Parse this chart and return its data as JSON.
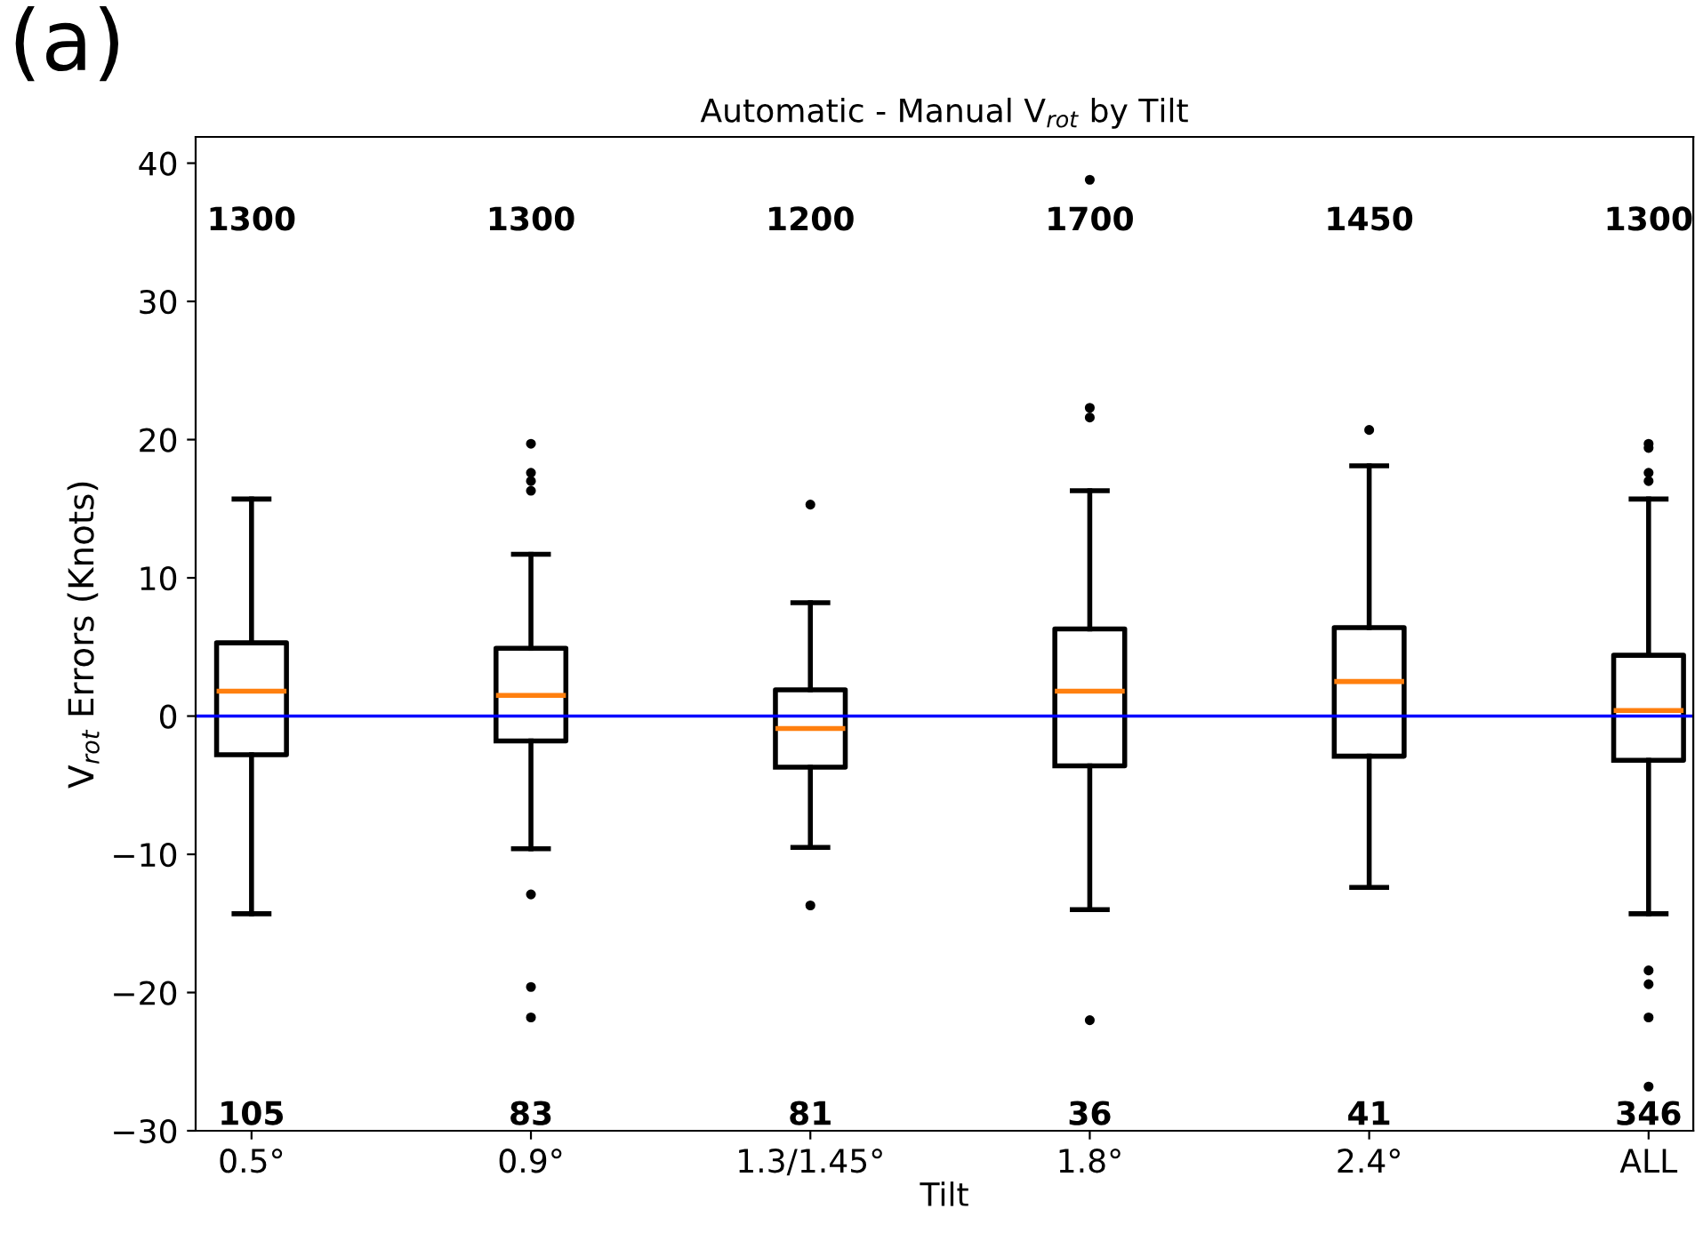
{
  "chart_data": {
    "type": "box",
    "title": "Automatic - Manual V$_{rot}$ by Tilt",
    "xlabel": "Tilt",
    "ylabel": "V$_{rot}$ Errors (Knots)",
    "categories": [
      "0.5°",
      "0.9°",
      "1.3/1.45°",
      "1.8°",
      "2.4°",
      "ALL"
    ],
    "boxes": [
      {
        "low": -14.3,
        "q1": -2.8,
        "median": 1.8,
        "q3": 5.3,
        "high": 15.7
      },
      {
        "low": -9.6,
        "q1": -1.8,
        "median": 1.5,
        "q3": 4.9,
        "high": 11.7,
        "outliers": [
          19.7,
          17.6,
          17.0,
          16.3,
          -12.9,
          -19.6,
          -21.8
        ]
      },
      {
        "low": -9.5,
        "q1": -3.7,
        "median": -0.9,
        "q3": 1.9,
        "high": 8.2,
        "outliers": [
          15.3,
          -13.7
        ]
      },
      {
        "low": -14.0,
        "q1": -3.6,
        "median": 1.8,
        "q3": 6.3,
        "high": 16.3,
        "outliers": [
          38.8,
          22.3,
          21.6,
          -22.0
        ]
      },
      {
        "low": -12.4,
        "q1": -2.9,
        "median": 2.5,
        "q3": 6.4,
        "high": 18.1,
        "outliers": [
          20.7
        ]
      },
      {
        "low": -14.3,
        "q1": -3.2,
        "median": 0.4,
        "q3": 4.4,
        "high": 15.7,
        "outliers": [
          19.7,
          19.4,
          17.6,
          17.0,
          -18.4,
          -19.4,
          -21.8,
          -26.8
        ]
      }
    ],
    "ylim": [
      -30,
      41.9
    ],
    "yticks": [
      {
        "value": -30,
        "label": "−30"
      },
      {
        "value": -20,
        "label": "−20"
      },
      {
        "value": -10,
        "label": "−10"
      },
      0,
      10,
      20,
      30,
      40
    ],
    "ref_lines": [
      {
        "axis": "y",
        "value": 0,
        "color": "#0000ff"
      }
    ],
    "grid": false,
    "annotations": [
      "(a)",
      "1300",
      "1300",
      "1200",
      "1700",
      "1450",
      "1300",
      "105",
      "83",
      "81",
      "36",
      "41",
      "346"
    ]
  }
}
